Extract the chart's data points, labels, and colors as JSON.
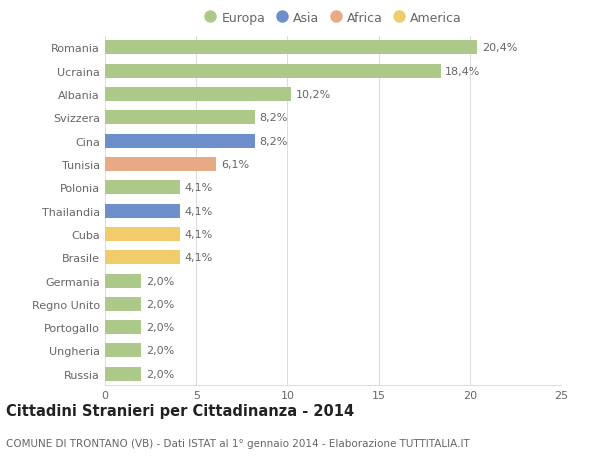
{
  "countries": [
    "Romania",
    "Ucraina",
    "Albania",
    "Svizzera",
    "Cina",
    "Tunisia",
    "Polonia",
    "Thailandia",
    "Cuba",
    "Brasile",
    "Germania",
    "Regno Unito",
    "Portogallo",
    "Ungheria",
    "Russia"
  ],
  "values": [
    20.4,
    18.4,
    10.2,
    8.2,
    8.2,
    6.1,
    4.1,
    4.1,
    4.1,
    4.1,
    2.0,
    2.0,
    2.0,
    2.0,
    2.0
  ],
  "labels": [
    "20,4%",
    "18,4%",
    "10,2%",
    "8,2%",
    "8,2%",
    "6,1%",
    "4,1%",
    "4,1%",
    "4,1%",
    "4,1%",
    "2,0%",
    "2,0%",
    "2,0%",
    "2,0%",
    "2,0%"
  ],
  "continents": [
    "Europa",
    "Europa",
    "Europa",
    "Europa",
    "Asia",
    "Africa",
    "Europa",
    "Asia",
    "America",
    "America",
    "Europa",
    "Europa",
    "Europa",
    "Europa",
    "Europa"
  ],
  "colors": {
    "Europa": "#adc98a",
    "Asia": "#6e8fca",
    "Africa": "#e8aa84",
    "America": "#f0cc6a"
  },
  "legend_order": [
    "Europa",
    "Asia",
    "Africa",
    "America"
  ],
  "xlim": [
    0,
    25
  ],
  "xticks": [
    0,
    5,
    10,
    15,
    20,
    25
  ],
  "title": "Cittadini Stranieri per Cittadinanza - 2014",
  "subtitle": "COMUNE DI TRONTANO (VB) - Dati ISTAT al 1° gennaio 2014 - Elaborazione TUTTITALIA.IT",
  "bg_color": "#ffffff",
  "grid_color": "#dddddd",
  "bar_height": 0.6,
  "label_fontsize": 8,
  "tick_fontsize": 8,
  "title_fontsize": 10.5,
  "subtitle_fontsize": 7.5
}
